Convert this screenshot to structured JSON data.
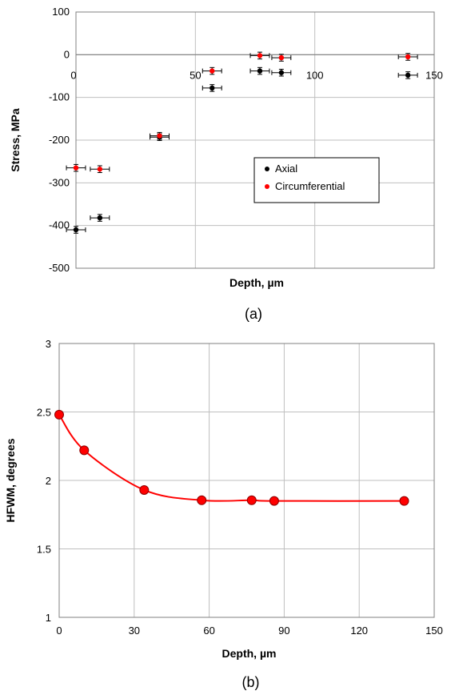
{
  "chart_data": [
    {
      "type": "scatter",
      "panel_label": "(a)",
      "xlabel": "Depth, µm",
      "ylabel": "Stress, MPa",
      "xlim": [
        0,
        150
      ],
      "ylim": [
        -500,
        100
      ],
      "xticks": [
        "0",
        "50",
        "100",
        "150"
      ],
      "yticks": [
        "100",
        "0",
        "-100",
        "-200",
        "-300",
        "-400",
        "-500"
      ],
      "grid": true,
      "error_bars": true,
      "legend_position": "center-right",
      "series": [
        {
          "name": "Axial",
          "color": "#000000",
          "x": [
            0,
            10,
            35,
            57,
            77,
            86,
            139
          ],
          "y": [
            -410,
            -382,
            -193,
            -78,
            -38,
            -42,
            -48
          ],
          "xerr": [
            4,
            4,
            4,
            4,
            4,
            4,
            4
          ],
          "yerr": [
            8,
            8,
            8,
            8,
            8,
            8,
            8
          ]
        },
        {
          "name": "Circumferential",
          "color": "#ff0000",
          "x": [
            0,
            10,
            35,
            57,
            77,
            86,
            139
          ],
          "y": [
            -265,
            -268,
            -190,
            -38,
            -2,
            -7,
            -5
          ],
          "xerr": [
            4,
            4,
            4,
            4,
            4,
            4,
            4
          ],
          "yerr": [
            8,
            8,
            8,
            8,
            8,
            8,
            8
          ]
        }
      ]
    },
    {
      "type": "line",
      "panel_label": "(b)",
      "xlabel": "Depth, µm",
      "ylabel": "HFWM, degrees",
      "xlim": [
        0,
        150
      ],
      "ylim": [
        1,
        3
      ],
      "xticks": [
        "0",
        "30",
        "60",
        "90",
        "120",
        "150"
      ],
      "yticks": [
        "3",
        "2.5",
        "2",
        "1.5",
        "1"
      ],
      "grid": true,
      "series": [
        {
          "color": "#ff0000",
          "x": [
            0,
            10,
            34,
            57,
            77,
            86,
            138
          ],
          "y": [
            2.48,
            2.22,
            1.93,
            1.855,
            1.855,
            1.85,
            1.85
          ]
        }
      ]
    }
  ]
}
